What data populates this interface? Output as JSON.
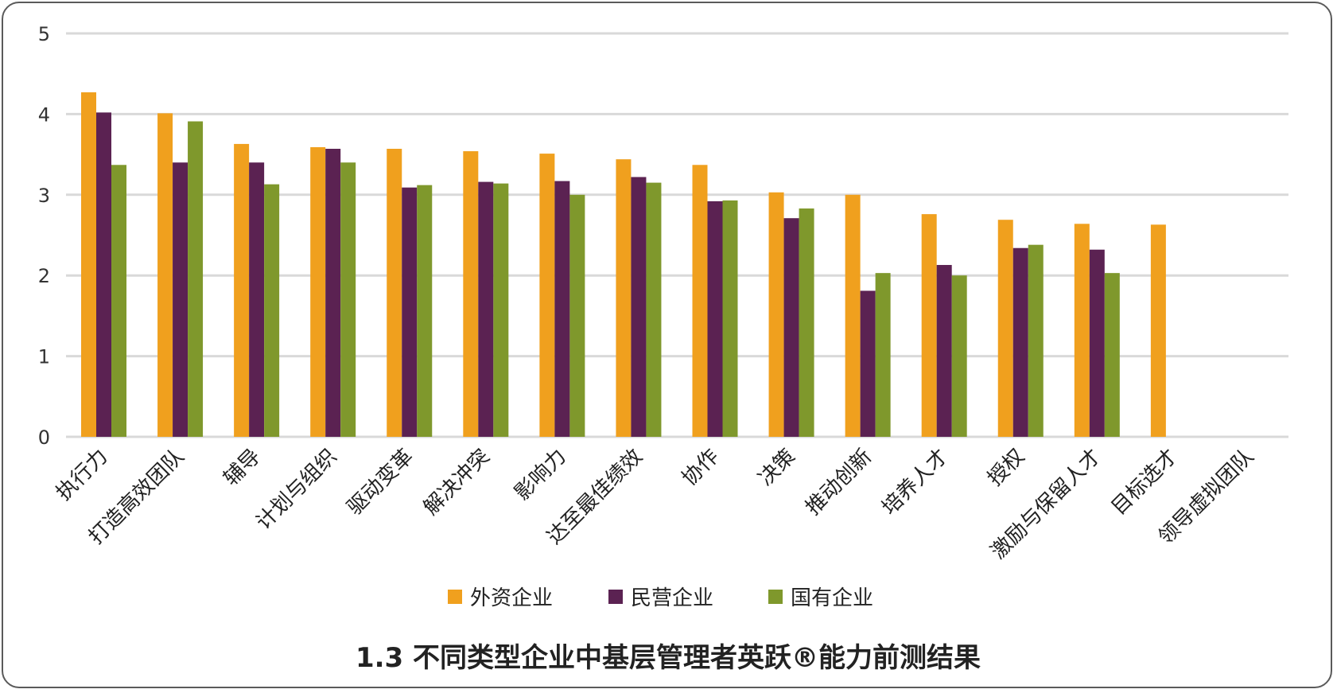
{
  "chart_data": {
    "type": "bar",
    "title": "1.3 不同类型企业中基层管理者英跃®能力前测结果",
    "xlabel": "",
    "ylabel": "",
    "ylim": [
      0,
      5
    ],
    "yticks": [
      0,
      1,
      2,
      3,
      4,
      5
    ],
    "grid": true,
    "legend_position": "bottom",
    "categories": [
      "执行力",
      "打造高效团队",
      "辅导",
      "计划与组织",
      "驱动变革",
      "解决冲突",
      "影响力",
      "达至最佳绩效",
      "协作",
      "决策",
      "推动创新",
      "培养人才",
      "授权",
      "激励与保留人才",
      "目标选才",
      "领导虚拟团队"
    ],
    "series": [
      {
        "name": "外资企业",
        "color": "#f0a01e",
        "values": [
          4.27,
          4.01,
          3.63,
          3.59,
          3.57,
          3.54,
          3.51,
          3.44,
          3.37,
          3.03,
          3.0,
          2.76,
          2.69,
          2.64,
          2.63,
          null
        ]
      },
      {
        "name": "民营企业",
        "color": "#5b2252",
        "values": [
          4.02,
          3.4,
          3.4,
          3.57,
          3.09,
          3.16,
          3.17,
          3.22,
          2.92,
          2.71,
          1.81,
          2.13,
          2.34,
          2.32,
          null,
          null
        ]
      },
      {
        "name": "国有企业",
        "color": "#7f982c",
        "values": [
          3.37,
          3.91,
          3.13,
          3.4,
          3.12,
          3.14,
          3.0,
          3.15,
          2.93,
          2.83,
          2.03,
          2.0,
          2.38,
          2.03,
          null,
          null
        ]
      }
    ]
  }
}
